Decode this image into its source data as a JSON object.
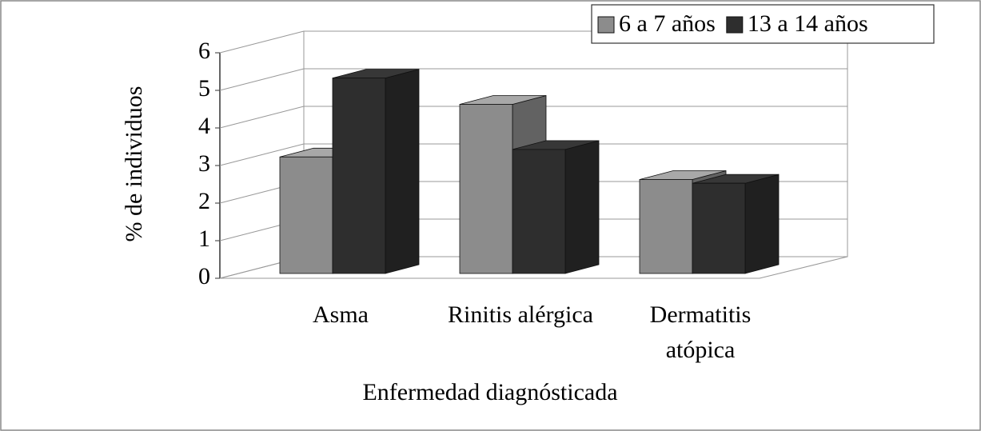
{
  "chart_data": {
    "type": "bar3d",
    "y_axis_label": "% de individuos",
    "x_axis_label": "Enfermedad diagnósticada",
    "categories": [
      "Asma",
      "Rinitis alérgica",
      "Dermatitis atópica"
    ],
    "series": [
      {
        "name": "6 a 7 años",
        "color": "#8c8c8c",
        "values": [
          3.1,
          4.5,
          2.5
        ]
      },
      {
        "name": "13 a 14 años",
        "color": "#2e2e2e",
        "values": [
          5.2,
          3.3,
          2.4
        ]
      }
    ],
    "ylim": [
      0,
      6
    ],
    "yticks": [
      0,
      1,
      2,
      3,
      4,
      5,
      6
    ],
    "grid": true,
    "legend": "top-right"
  }
}
